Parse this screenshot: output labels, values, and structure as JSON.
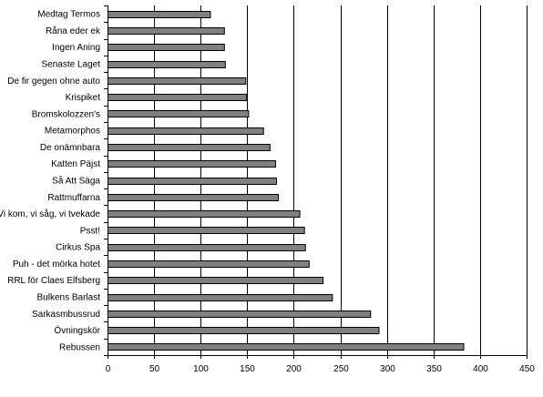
{
  "chart_data": {
    "type": "bar",
    "orientation": "horizontal",
    "title": "",
    "xlabel": "",
    "ylabel": "",
    "categories": [
      "Medtag Termos",
      "Råna eder ek",
      "Ingen Aning",
      "Senaste Laget",
      "De fir gegen ohne auto",
      "Krispiket",
      "Bromskolozzen's",
      "Metamorphos",
      "De onämnbara",
      "Katten Päjst",
      "Så Att Säga",
      "Rattmuffarna",
      "Vi kom, vi såg, vi tvekade",
      "Psst!",
      "Cirkus Spa",
      "Puh - det mörka hotet",
      "RRL för Claes Elfsberg",
      "Bulkens Barlast",
      "Sarkasmbussrud",
      "Övningskör",
      "Rebussen"
    ],
    "values": [
      110,
      125,
      125,
      126,
      148,
      149,
      151,
      167,
      174,
      180,
      181,
      183,
      206,
      211,
      212,
      216,
      231,
      241,
      282,
      291,
      382
    ],
    "xlim": [
      0,
      450
    ],
    "xticks": [
      "0",
      "50",
      "100",
      "150",
      "200",
      "250",
      "300",
      "350",
      "400",
      "450"
    ],
    "grid": "vertical",
    "legend": "none",
    "colors": {
      "bar_fill": "#808080",
      "bar_stroke": "#000000",
      "grid": "#000000",
      "background": "#ffffff"
    }
  }
}
